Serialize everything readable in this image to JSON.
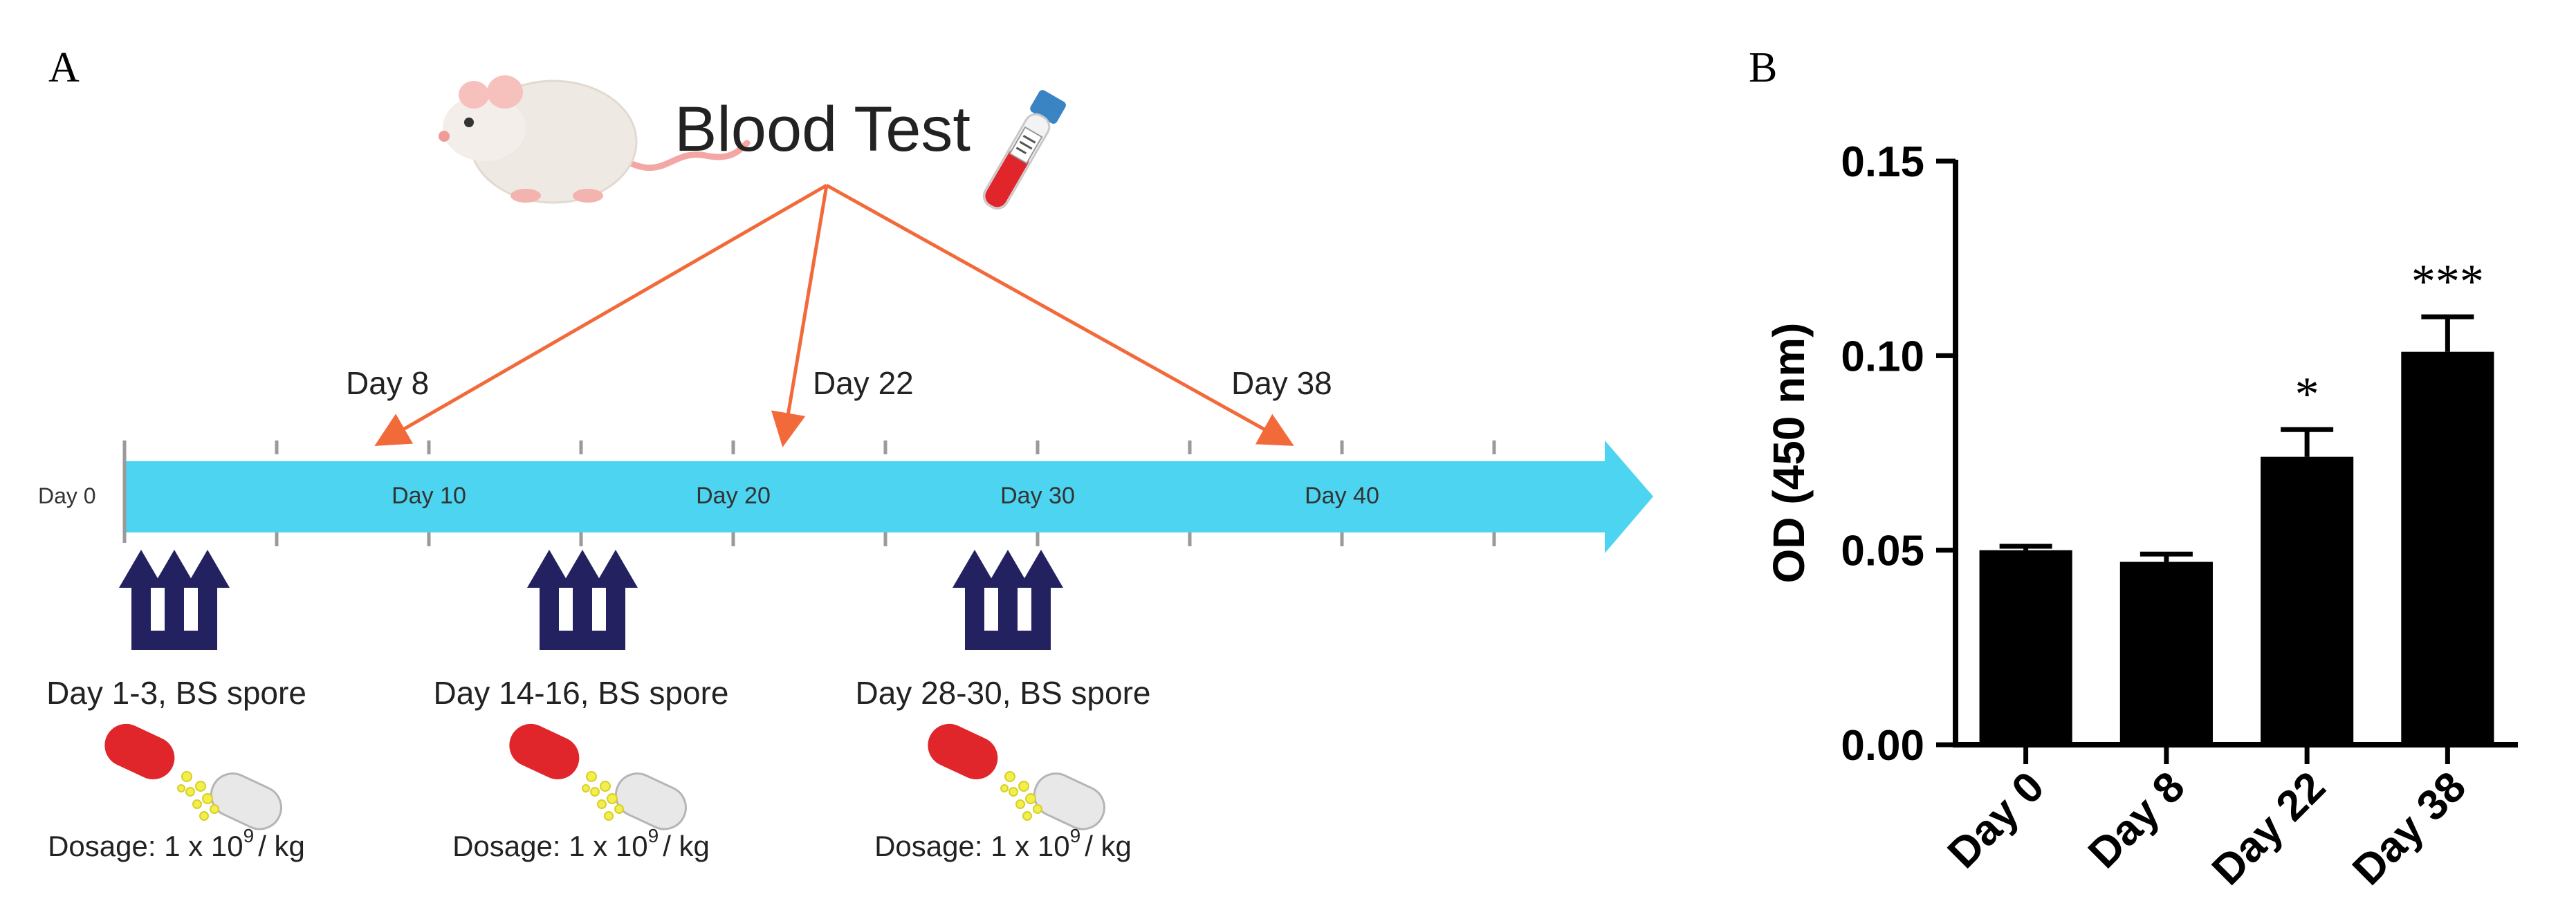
{
  "panel_a": {
    "label": "A",
    "title": "Blood Test",
    "test_days": [
      "Day 8",
      "Day 22",
      "Day 38"
    ],
    "timeline_ticks": [
      "Day 0",
      "Day 10",
      "Day 20",
      "Day 30",
      "Day 40"
    ],
    "doses": [
      {
        "label": "Day 1-3, BS spore",
        "dosage_prefix": "Dosage: 1 x 10",
        "dosage_exp": "9",
        "dosage_suffix": "/ kg"
      },
      {
        "label": "Day 14-16, BS spore",
        "dosage_prefix": "Dosage: 1 x 10",
        "dosage_exp": "9",
        "dosage_suffix": "/ kg"
      },
      {
        "label": "Day 28-30, BS spore",
        "dosage_prefix": "Dosage: 1 x 10",
        "dosage_exp": "9",
        "dosage_suffix": "/ kg"
      }
    ],
    "colors": {
      "timeline": "#4dd4f0",
      "test_arrow": "#f26a3a",
      "dose_arrow": "#232160",
      "capsule_red": "#e0262b",
      "spore": "#f2ee4a"
    },
    "icons": [
      "mouse-icon",
      "blood-tube-icon",
      "capsule-icon"
    ]
  },
  "panel_b": {
    "label": "B",
    "chart_data": {
      "type": "bar",
      "categories": [
        "Day 0",
        "Day 8",
        "Day 22",
        "Day 38"
      ],
      "values": [
        0.05,
        0.047,
        0.074,
        0.101
      ],
      "errors": [
        0.001,
        0.002,
        0.007,
        0.009
      ],
      "significance": [
        "",
        "",
        "*",
        "***"
      ],
      "ylabel": "OD (450 nm)",
      "xlabel": "",
      "ylim": [
        0,
        0.15
      ],
      "yticks": [
        "0.00",
        "0.05",
        "0.10",
        "0.15"
      ],
      "bar_color": "#000000",
      "grid": false
    }
  }
}
